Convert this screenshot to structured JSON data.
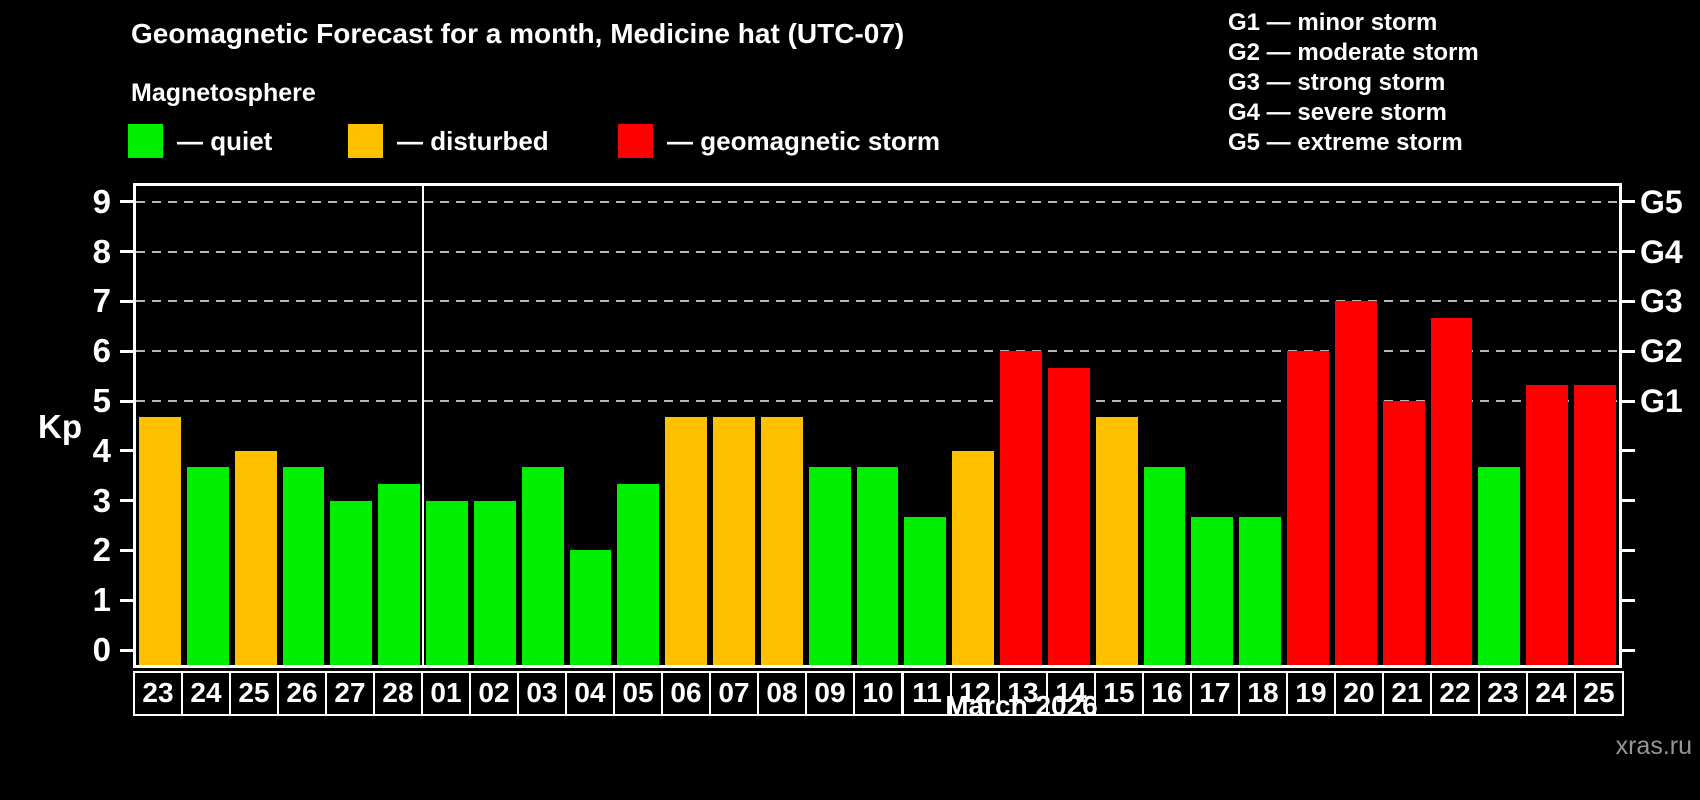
{
  "header": {
    "title": "Geomagnetic Forecast for a month, Medicine hat (UTC-07)",
    "subtitle": "Magnetosphere"
  },
  "legend": {
    "items": [
      {
        "name": "quiet",
        "label": "— quiet",
        "color": "#00ee00"
      },
      {
        "name": "disturbed",
        "label": "— disturbed",
        "color": "#ffc000"
      },
      {
        "name": "storm",
        "label": "— geomagnetic storm",
        "color": "#ff0000"
      }
    ]
  },
  "g_scale_legend": {
    "lines": [
      "G1 — minor storm",
      "G2 — moderate storm",
      "G3 — strong storm",
      "G4 — severe storm",
      "G5 — extreme storm"
    ]
  },
  "axes": {
    "y_label": "Kp",
    "y_tick_labels": [
      "0",
      "1",
      "2",
      "3",
      "4",
      "5",
      "6",
      "7",
      "8",
      "9"
    ],
    "right_tick_labels": [
      {
        "label": "G1",
        "kp": 5
      },
      {
        "label": "G2",
        "kp": 6
      },
      {
        "label": "G3",
        "kp": 7
      },
      {
        "label": "G4",
        "kp": 8
      },
      {
        "label": "G5",
        "kp": 9
      }
    ],
    "x_label": "March 2026"
  },
  "watermark": "xras.ru",
  "chart_data": {
    "type": "bar",
    "title": "Geomagnetic Forecast for a month, Medicine hat (UTC-07)",
    "ylabel": "Kp",
    "xlabel": "March 2026",
    "ylim": [
      0,
      9.4
    ],
    "grid": "dashed horizontal at Kp 5-9",
    "gridlines_at": [
      5,
      6,
      7,
      8,
      9
    ],
    "month_separator_after_index": 5,
    "categories": [
      "23",
      "24",
      "25",
      "26",
      "27",
      "28",
      "01",
      "02",
      "03",
      "04",
      "05",
      "06",
      "07",
      "08",
      "09",
      "10",
      "11",
      "12",
      "13",
      "14",
      "15",
      "16",
      "17",
      "18",
      "19",
      "20",
      "21",
      "22",
      "23",
      "24",
      "25"
    ],
    "values": [
      4.67,
      3.67,
      4.0,
      3.67,
      3.0,
      3.33,
      3.0,
      3.0,
      3.67,
      2.0,
      3.33,
      4.67,
      4.67,
      4.67,
      3.67,
      3.67,
      2.67,
      4.0,
      6.0,
      5.67,
      4.67,
      3.67,
      2.67,
      2.67,
      6.0,
      7.0,
      5.0,
      6.67,
      3.67,
      5.33,
      5.33
    ],
    "statuses": [
      "disturbed",
      "quiet",
      "disturbed",
      "quiet",
      "quiet",
      "quiet",
      "quiet",
      "quiet",
      "quiet",
      "quiet",
      "quiet",
      "disturbed",
      "disturbed",
      "disturbed",
      "quiet",
      "quiet",
      "quiet",
      "disturbed",
      "storm",
      "storm",
      "disturbed",
      "quiet",
      "quiet",
      "quiet",
      "storm",
      "storm",
      "storm",
      "storm",
      "quiet",
      "storm",
      "storm"
    ],
    "status_colors": {
      "quiet": "#00ee00",
      "disturbed": "#ffc000",
      "storm": "#ff0000"
    }
  }
}
